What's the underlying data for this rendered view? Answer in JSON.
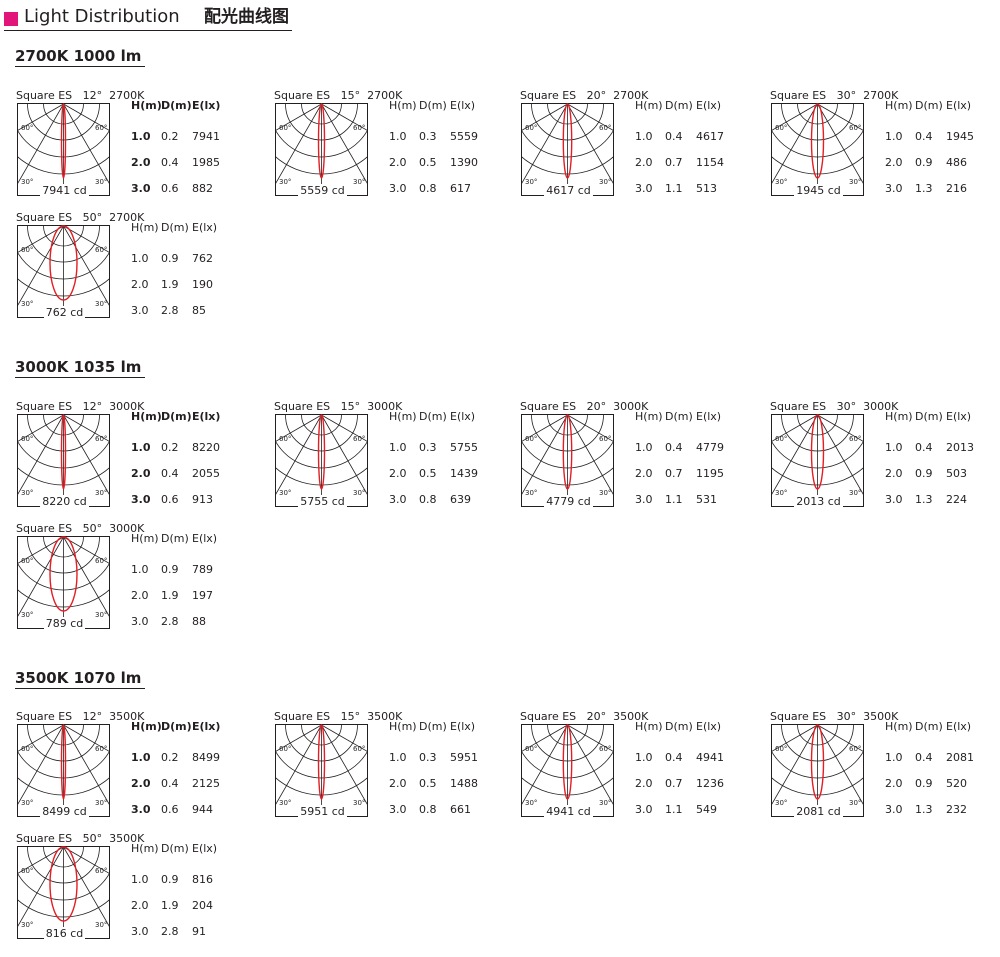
{
  "header": {
    "title_en": "Light Distribution",
    "title_cn": "配光曲线图",
    "accent_color": "#e2157a"
  },
  "table_headers": [
    "H(m)",
    "D(m)",
    "E(lx)"
  ],
  "sections": [
    {
      "heading": "2700K  1000   lm",
      "panels": [
        {
          "label": "Square ES   12°  2700K",
          "cd": "7941 cd",
          "rows": [
            [
              "1.0",
              "0.2",
              "7941"
            ],
            [
              "2.0",
              "0.4",
              "1985"
            ],
            [
              "3.0",
              "0.6",
              "882"
            ]
          ]
        },
        {
          "label": "Square ES   15°  2700K",
          "cd": "5559 cd",
          "rows": [
            [
              "1.0",
              "0.3",
              "5559"
            ],
            [
              "2.0",
              "0.5",
              "1390"
            ],
            [
              "3.0",
              "0.8",
              "617"
            ]
          ]
        },
        {
          "label": "Square ES   20°  2700K",
          "cd": "4617 cd",
          "rows": [
            [
              "1.0",
              "0.4",
              "4617"
            ],
            [
              "2.0",
              "0.7",
              "1154"
            ],
            [
              "3.0",
              "1.1",
              "513"
            ]
          ]
        },
        {
          "label": "Square ES   30°  2700K",
          "cd": "1945 cd",
          "rows": [
            [
              "1.0",
              "0.4",
              "1945"
            ],
            [
              "2.0",
              "0.9",
              "486"
            ],
            [
              "3.0",
              "1.3",
              "216"
            ]
          ]
        },
        {
          "label": "Square ES   50°  2700K",
          "cd": "762 cd",
          "rows": [
            [
              "1.0",
              "0.9",
              "762"
            ],
            [
              "2.0",
              "1.9",
              "190"
            ],
            [
              "3.0",
              "2.8",
              "85"
            ]
          ]
        }
      ]
    },
    {
      "heading": "3000K  1035   lm",
      "panels": [
        {
          "label": "Square ES   12°  3000K",
          "cd": "8220 cd",
          "rows": [
            [
              "1.0",
              "0.2",
              "8220"
            ],
            [
              "2.0",
              "0.4",
              "2055"
            ],
            [
              "3.0",
              "0.6",
              "913"
            ]
          ]
        },
        {
          "label": "Square ES   15°  3000K",
          "cd": "5755 cd",
          "rows": [
            [
              "1.0",
              "0.3",
              "5755"
            ],
            [
              "2.0",
              "0.5",
              "1439"
            ],
            [
              "3.0",
              "0.8",
              "639"
            ]
          ]
        },
        {
          "label": "Square ES   20°  3000K",
          "cd": "4779 cd",
          "rows": [
            [
              "1.0",
              "0.4",
              "4779"
            ],
            [
              "2.0",
              "0.7",
              "1195"
            ],
            [
              "3.0",
              "1.1",
              "531"
            ]
          ]
        },
        {
          "label": "Square ES   30°  3000K",
          "cd": "2013 cd",
          "rows": [
            [
              "1.0",
              "0.4",
              "2013"
            ],
            [
              "2.0",
              "0.9",
              "503"
            ],
            [
              "3.0",
              "1.3",
              "224"
            ]
          ]
        },
        {
          "label": "Square ES   50°  3000K",
          "cd": "789 cd",
          "rows": [
            [
              "1.0",
              "0.9",
              "789"
            ],
            [
              "2.0",
              "1.9",
              "197"
            ],
            [
              "3.0",
              "2.8",
              "88"
            ]
          ]
        }
      ]
    },
    {
      "heading": "3500K   1070   lm",
      "panels": [
        {
          "label": "Square ES   12°  3500K",
          "cd": "8499 cd",
          "rows": [
            [
              "1.0",
              "0.2",
              "8499"
            ],
            [
              "2.0",
              "0.4",
              "2125"
            ],
            [
              "3.0",
              "0.6",
              "944"
            ]
          ]
        },
        {
          "label": "Square ES   15°  3500K",
          "cd": "5951 cd",
          "rows": [
            [
              "1.0",
              "0.3",
              "5951"
            ],
            [
              "2.0",
              "0.5",
              "1488"
            ],
            [
              "3.0",
              "0.8",
              "661"
            ]
          ]
        },
        {
          "label": "Square ES   20°  3500K",
          "cd": "4941 cd",
          "rows": [
            [
              "1.0",
              "0.4",
              "4941"
            ],
            [
              "2.0",
              "0.7",
              "1236"
            ],
            [
              "3.0",
              "1.1",
              "549"
            ]
          ]
        },
        {
          "label": "Square ES   30°  3500K",
          "cd": "2081 cd",
          "rows": [
            [
              "1.0",
              "0.4",
              "2081"
            ],
            [
              "2.0",
              "0.9",
              "520"
            ],
            [
              "3.0",
              "1.3",
              "232"
            ]
          ]
        },
        {
          "label": "Square ES   50°  3500K",
          "cd": "816 cd",
          "rows": [
            [
              "1.0",
              "0.9",
              "816"
            ],
            [
              "2.0",
              "1.9",
              "204"
            ],
            [
              "3.0",
              "2.8",
              "91"
            ]
          ]
        }
      ]
    }
  ],
  "diagram_labels": {
    "deg60": "60°",
    "deg30": "30°"
  },
  "curve_color": "#e31e24"
}
